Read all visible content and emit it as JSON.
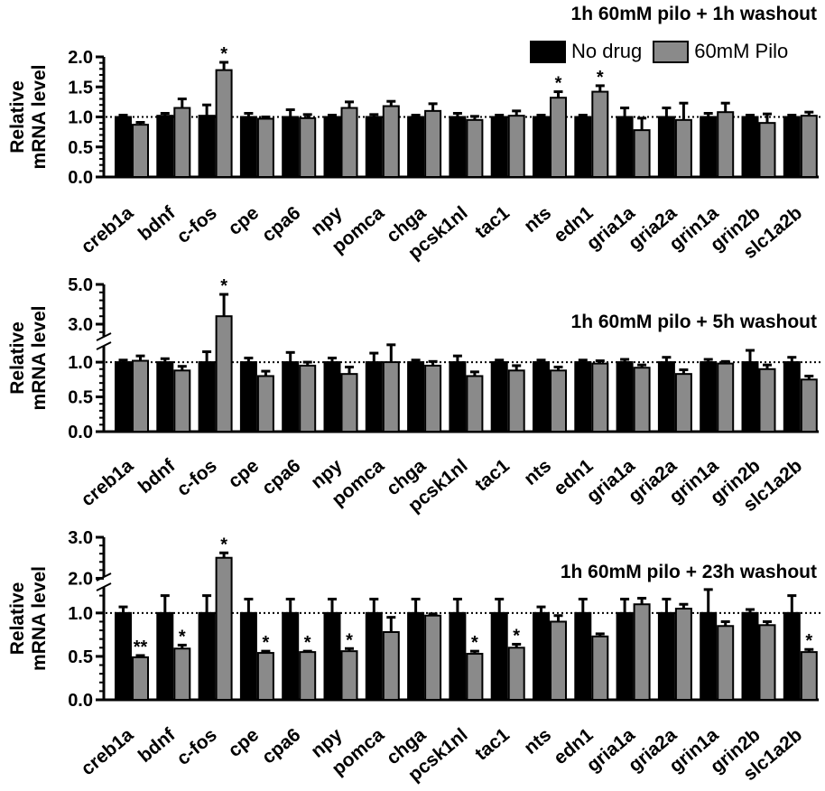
{
  "legend": {
    "series": [
      "No drug",
      "60mM Pilo"
    ]
  },
  "colors": {
    "control": "#000000",
    "treated": "#8a8a8a"
  },
  "chart_data": [
    {
      "type": "bar",
      "title": "1h 60mM pilo + 1h washout",
      "ylabel": "Relative\nmRNA level",
      "ylim": [
        0,
        2.0
      ],
      "yticks": [
        "0.0",
        "0.5",
        "1.0",
        "1.5",
        "2.0"
      ],
      "reference_line": 1.0,
      "categories": [
        "creb1a",
        "bdnf",
        "c-fos",
        "cpe",
        "cpa6",
        "npy",
        "pomca",
        "chga",
        "pcsk1nl",
        "tac1",
        "nts",
        "edn1",
        "gria1a",
        "gria2a",
        "grin1a",
        "grin2b",
        "slc1a2b"
      ],
      "series": [
        {
          "name": "No drug",
          "values": [
            1.0,
            1.02,
            1.02,
            1.0,
            1.0,
            1.0,
            1.0,
            1.0,
            1.0,
            1.0,
            1.0,
            1.0,
            1.0,
            1.0,
            1.0,
            1.0,
            1.0
          ],
          "errors": [
            0.03,
            0.04,
            0.18,
            0.06,
            0.12,
            0.03,
            0.04,
            0.03,
            0.06,
            0.03,
            0.03,
            0.03,
            0.15,
            0.15,
            0.06,
            0.03,
            0.03
          ]
        },
        {
          "name": "60mM Pilo",
          "values": [
            0.87,
            1.15,
            1.78,
            0.97,
            0.98,
            1.15,
            1.18,
            1.1,
            0.95,
            1.02,
            1.32,
            1.42,
            0.78,
            0.95,
            1.08,
            0.9,
            1.02
          ],
          "errors": [
            0.04,
            0.15,
            0.13,
            0.03,
            0.06,
            0.1,
            0.08,
            0.12,
            0.06,
            0.08,
            0.1,
            0.1,
            0.2,
            0.28,
            0.15,
            0.15,
            0.06
          ]
        }
      ],
      "significance": [
        "",
        "",
        "*",
        "",
        "",
        "",
        "",
        "",
        "",
        "",
        "*",
        "*",
        "",
        "",
        "",
        "",
        ""
      ]
    },
    {
      "type": "bar",
      "title": "1h 60mM pilo + 5h washout",
      "ylabel": "Relative\nmRNA level",
      "ylim": [
        0,
        5.0
      ],
      "yticks": [
        "0.0",
        "0.5",
        "1.0",
        "3.0",
        "5.0"
      ],
      "reference_line": 1.0,
      "axis_break": [
        1.3,
        2.5
      ],
      "categories": [
        "creb1a",
        "bdnf",
        "c-fos",
        "cpe",
        "cpa6",
        "npy",
        "pomca",
        "chga",
        "pcsk1nl",
        "tac1",
        "nts",
        "edn1",
        "gria1a",
        "gria2a",
        "grin1a",
        "grin2b",
        "slc1a2b"
      ],
      "series": [
        {
          "name": "No drug",
          "values": [
            1.0,
            1.0,
            1.0,
            1.0,
            1.0,
            1.0,
            1.0,
            1.0,
            1.0,
            1.0,
            1.0,
            1.0,
            1.0,
            1.0,
            1.0,
            1.0,
            1.0
          ],
          "errors": [
            0.03,
            0.05,
            0.15,
            0.06,
            0.14,
            0.06,
            0.13,
            0.03,
            0.09,
            0.03,
            0.03,
            0.03,
            0.04,
            0.07,
            0.04,
            0.17,
            0.07
          ]
        },
        {
          "name": "60mM Pilo",
          "values": [
            1.02,
            0.88,
            3.4,
            0.8,
            0.95,
            0.83,
            1.0,
            0.95,
            0.8,
            0.88,
            0.88,
            0.98,
            0.92,
            0.83,
            0.98,
            0.9,
            0.75
          ],
          "errors": [
            0.07,
            0.06,
            1.1,
            0.07,
            0.05,
            0.1,
            0.25,
            0.06,
            0.06,
            0.07,
            0.05,
            0.04,
            0.04,
            0.06,
            0.03,
            0.06,
            0.05
          ]
        }
      ],
      "significance": [
        "",
        "",
        "*",
        "",
        "",
        "",
        "",
        "",
        "",
        "",
        "",
        "",
        "",
        "",
        "",
        "",
        ""
      ]
    },
    {
      "type": "bar",
      "title": "1h 60mM pilo + 23h washout",
      "ylabel": "Relative\nmRNA level",
      "ylim": [
        0,
        3.0
      ],
      "yticks": [
        "0.0",
        "0.5",
        "1.0",
        "2.0",
        "3.0"
      ],
      "reference_line": 1.0,
      "axis_break": [
        1.3,
        1.9
      ],
      "categories": [
        "creb1a",
        "bdnf",
        "c-fos",
        "cpe",
        "cpa6",
        "npy",
        "pomca",
        "chga",
        "pcsk1nl",
        "tac1",
        "nts",
        "edn1",
        "gria1a",
        "gria2a",
        "grin1a",
        "grin2b",
        "slc1a2b"
      ],
      "series": [
        {
          "name": "No drug",
          "values": [
            1.0,
            1.0,
            1.0,
            1.0,
            1.0,
            1.0,
            1.0,
            1.0,
            1.0,
            1.0,
            1.0,
            1.0,
            1.0,
            1.0,
            1.0,
            1.0,
            1.0
          ],
          "errors": [
            0.07,
            0.2,
            0.2,
            0.16,
            0.16,
            0.16,
            0.16,
            0.16,
            0.16,
            0.16,
            0.07,
            0.16,
            0.16,
            0.16,
            0.27,
            0.04,
            0.2
          ]
        },
        {
          "name": "60mM Pilo",
          "values": [
            0.49,
            0.59,
            2.5,
            0.54,
            0.55,
            0.56,
            0.78,
            0.97,
            0.53,
            0.6,
            0.9,
            0.73,
            1.1,
            1.05,
            0.85,
            0.86,
            0.55
          ],
          "errors": [
            0.02,
            0.04,
            0.12,
            0.02,
            0.01,
            0.03,
            0.17,
            0.02,
            0.03,
            0.04,
            0.07,
            0.03,
            0.07,
            0.05,
            0.05,
            0.04,
            0.03
          ]
        }
      ],
      "significance": [
        "**",
        "*",
        "*",
        "*",
        "*",
        "*",
        "",
        "",
        "*",
        "*",
        "",
        "",
        "",
        "",
        "",
        "",
        "*"
      ]
    }
  ]
}
